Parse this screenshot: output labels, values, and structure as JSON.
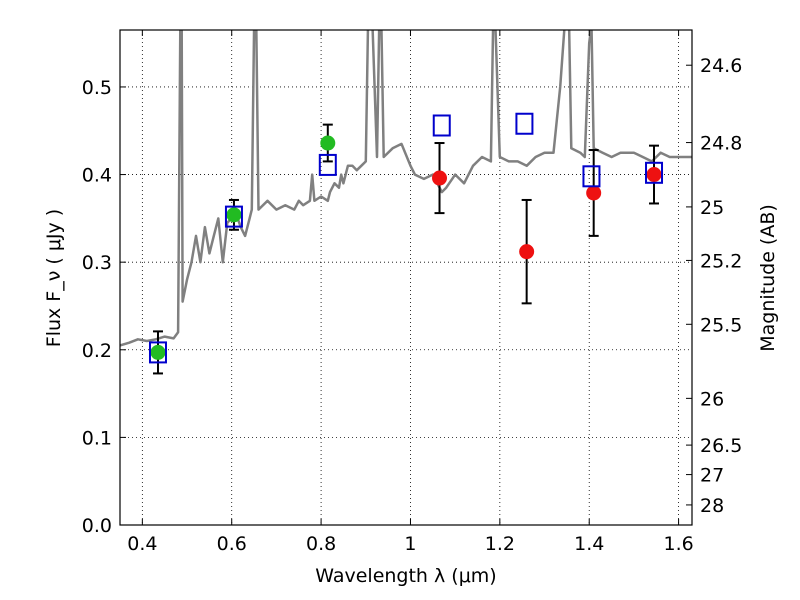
{
  "chart_data": {
    "type": "scatter",
    "title": "",
    "xlabel": "Wavelength  λ (μm)",
    "ylabel": "Flux  F_ν  ( μJy )",
    "y2label": "Magnitude (AB)",
    "xlim": [
      0.35,
      1.63
    ],
    "ylim": [
      0.0,
      0.565
    ],
    "grid": true,
    "x_ticks": [
      0.4,
      0.6,
      0.8,
      1.0,
      1.2,
      1.4,
      1.6
    ],
    "x_tick_labels": [
      "0.4",
      "0.6",
      "0.8",
      "1",
      "1.2",
      "1.4",
      "1.6"
    ],
    "y_ticks": [
      0.0,
      0.1,
      0.2,
      0.3,
      0.4,
      0.5
    ],
    "y_tick_labels": [
      "0.0",
      "0.1",
      "0.2",
      "0.3",
      "0.4",
      "0.5"
    ],
    "y2_ticks": [
      24.6,
      24.8,
      25.0,
      25.2,
      25.5,
      26.0,
      26.5,
      27.0,
      28.0
    ],
    "y2_tick_labels": [
      "24.6",
      "24.8",
      "25",
      "25.2",
      "25.5",
      "26",
      "26.5",
      "27",
      "28"
    ],
    "colors": {
      "template": "#808080",
      "green": "#22bb22",
      "red": "#ee1111",
      "model_box": "#0000cc",
      "errorbar": "#000000",
      "grid": "#999999"
    },
    "series": [
      {
        "kind": "line",
        "points": [
          [
            0.35,
            0.205
          ],
          [
            0.37,
            0.208
          ],
          [
            0.39,
            0.212
          ],
          [
            0.41,
            0.21
          ],
          [
            0.43,
            0.212
          ],
          [
            0.45,
            0.215
          ],
          [
            0.47,
            0.213
          ],
          [
            0.48,
            0.22
          ],
          [
            0.485,
            0.57
          ],
          [
            0.488,
            0.57
          ],
          [
            0.49,
            0.255
          ],
          [
            0.5,
            0.28
          ],
          [
            0.51,
            0.3
          ],
          [
            0.52,
            0.33
          ],
          [
            0.53,
            0.3
          ],
          [
            0.54,
            0.34
          ],
          [
            0.55,
            0.31
          ],
          [
            0.56,
            0.33
          ],
          [
            0.57,
            0.35
          ],
          [
            0.58,
            0.3
          ],
          [
            0.59,
            0.345
          ],
          [
            0.6,
            0.35
          ],
          [
            0.61,
            0.355
          ],
          [
            0.62,
            0.34
          ],
          [
            0.63,
            0.33
          ],
          [
            0.64,
            0.35
          ],
          [
            0.645,
            0.36
          ],
          [
            0.65,
            0.57
          ],
          [
            0.655,
            0.57
          ],
          [
            0.66,
            0.36
          ],
          [
            0.68,
            0.37
          ],
          [
            0.7,
            0.36
          ],
          [
            0.72,
            0.365
          ],
          [
            0.74,
            0.36
          ],
          [
            0.75,
            0.37
          ],
          [
            0.76,
            0.365
          ],
          [
            0.775,
            0.37
          ],
          [
            0.78,
            0.4
          ],
          [
            0.785,
            0.37
          ],
          [
            0.8,
            0.375
          ],
          [
            0.815,
            0.37
          ],
          [
            0.82,
            0.38
          ],
          [
            0.83,
            0.39
          ],
          [
            0.84,
            0.385
          ],
          [
            0.845,
            0.4
          ],
          [
            0.85,
            0.39
          ],
          [
            0.86,
            0.41
          ],
          [
            0.87,
            0.41
          ],
          [
            0.88,
            0.405
          ],
          [
            0.89,
            0.41
          ],
          [
            0.9,
            0.415
          ],
          [
            0.905,
            0.57
          ],
          [
            0.915,
            0.57
          ],
          [
            0.925,
            0.42
          ],
          [
            0.93,
            0.57
          ],
          [
            0.935,
            0.57
          ],
          [
            0.94,
            0.42
          ],
          [
            0.96,
            0.43
          ],
          [
            0.98,
            0.435
          ],
          [
            1.0,
            0.41
          ],
          [
            1.01,
            0.4
          ],
          [
            1.03,
            0.395
          ],
          [
            1.05,
            0.4
          ],
          [
            1.07,
            0.38
          ],
          [
            1.08,
            0.385
          ],
          [
            1.1,
            0.4
          ],
          [
            1.12,
            0.39
          ],
          [
            1.14,
            0.41
          ],
          [
            1.16,
            0.42
          ],
          [
            1.18,
            0.415
          ],
          [
            1.185,
            0.57
          ],
          [
            1.19,
            0.57
          ],
          [
            1.2,
            0.42
          ],
          [
            1.22,
            0.415
          ],
          [
            1.24,
            0.415
          ],
          [
            1.26,
            0.41
          ],
          [
            1.28,
            0.42
          ],
          [
            1.3,
            0.425
          ],
          [
            1.32,
            0.425
          ],
          [
            1.335,
            0.5
          ],
          [
            1.345,
            0.57
          ],
          [
            1.355,
            0.57
          ],
          [
            1.36,
            0.43
          ],
          [
            1.38,
            0.425
          ],
          [
            1.39,
            0.42
          ],
          [
            1.4,
            0.55
          ],
          [
            1.405,
            0.57
          ],
          [
            1.41,
            0.43
          ],
          [
            1.43,
            0.425
          ],
          [
            1.45,
            0.42
          ],
          [
            1.47,
            0.425
          ],
          [
            1.5,
            0.425
          ],
          [
            1.52,
            0.42
          ],
          [
            1.54,
            0.415
          ],
          [
            1.56,
            0.425
          ],
          [
            1.58,
            0.42
          ],
          [
            1.6,
            0.42
          ],
          [
            1.63,
            0.42
          ]
        ]
      },
      {
        "kind": "points",
        "marker": "circle",
        "color": "green",
        "x": [
          0.435,
          0.605,
          0.815
        ],
        "y": [
          0.197,
          0.354,
          0.436
        ],
        "err": [
          0.024,
          0.017,
          0.021
        ]
      },
      {
        "kind": "points",
        "marker": "circle",
        "color": "red",
        "x": [
          1.065,
          1.26,
          1.41,
          1.545
        ],
        "y": [
          0.396,
          0.312,
          0.379,
          0.4
        ],
        "err": [
          0.04,
          0.059,
          0.049,
          0.033
        ]
      },
      {
        "kind": "points",
        "marker": "open-square",
        "color": "model_box",
        "x": [
          0.435,
          0.605,
          0.815,
          1.07,
          1.255,
          1.405,
          1.545
        ],
        "y": [
          0.197,
          0.352,
          0.411,
          0.456,
          0.458,
          0.398,
          0.402
        ]
      }
    ]
  }
}
